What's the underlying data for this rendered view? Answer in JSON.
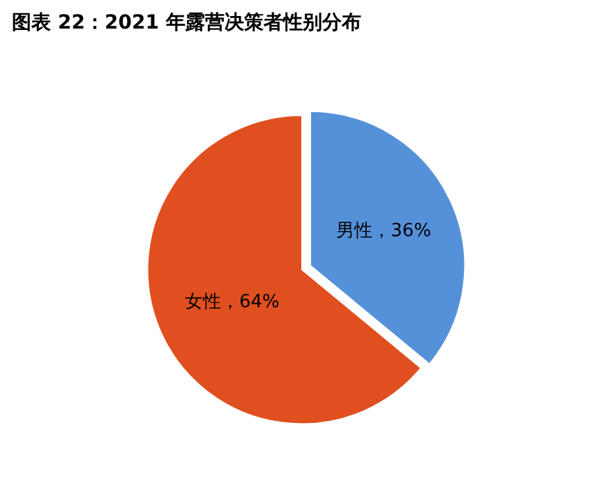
{
  "chart_data": {
    "type": "pie",
    "title": "图表 22：2021 年露营决策者性别分布",
    "categories": [
      "男性",
      "女性"
    ],
    "values": [
      36,
      64
    ],
    "colors": [
      "#5591d9",
      "#e04f1f"
    ],
    "value_labels": [
      "36%",
      "64%"
    ],
    "legend": false
  }
}
